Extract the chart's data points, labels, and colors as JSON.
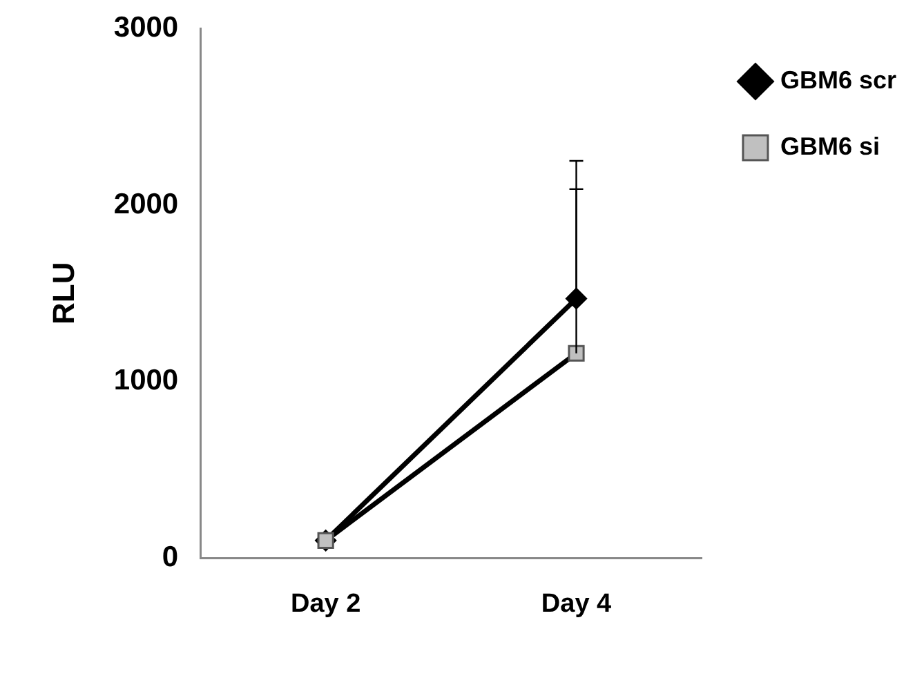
{
  "chart_data": {
    "type": "line",
    "ylabel": "RLU",
    "categories": [
      "Day 2",
      "Day 4"
    ],
    "series": [
      {
        "name": "GBM6 scr",
        "color": "#000000",
        "marker": "diamond",
        "values": [
          100,
          1470
        ],
        "errors": [
          null,
          [
            1470,
            2250
          ]
        ]
      },
      {
        "name": "GBM6 si",
        "color": "#000000",
        "marker": "square",
        "values": [
          100,
          1160
        ],
        "errors": [
          null,
          [
            1160,
            2090
          ]
        ]
      }
    ],
    "ylim": [
      0,
      3000
    ],
    "yticks": [
      0,
      1000,
      2000,
      3000
    ],
    "grid": false,
    "legend": "top right",
    "line_style": "solid"
  }
}
